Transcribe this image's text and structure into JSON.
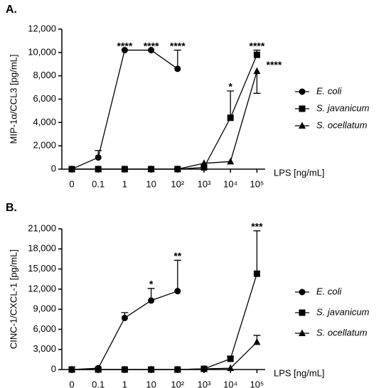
{
  "chart_data": [
    {
      "type": "line",
      "panel_label": "A.",
      "ylabel": "MIP-1α/CCL3 [pg/mL]",
      "xlabel": "LPS [ng/mL]",
      "categories": [
        "0",
        "0.1",
        "1",
        "10",
        "10²",
        "10³",
        "10⁴",
        "10⁵"
      ],
      "ylim": [
        0,
        12000
      ],
      "yticks": [
        0,
        {
          "value": 2000,
          "label": "2,000"
        },
        {
          "value": 4000,
          "label": "4,000"
        },
        {
          "value": 6000,
          "label": "6,000"
        },
        {
          "value": 8000,
          "label": "8,000"
        },
        {
          "value": 10000,
          "label": "10,000"
        },
        {
          "value": 12000,
          "label": "12,000"
        }
      ],
      "series": [
        {
          "name": "E. coli",
          "marker": "circle",
          "color": "#000000",
          "values": [
            0,
            1000,
            10200,
            10200,
            8600,
            null,
            null,
            null
          ],
          "errors": [
            null,
            600,
            null,
            null,
            1600,
            null,
            null,
            null
          ]
        },
        {
          "name": "S. javanicum",
          "marker": "square",
          "color": "#000000",
          "values": [
            0,
            0,
            0,
            0,
            0,
            150,
            4400,
            9800
          ],
          "errors": [
            null,
            null,
            null,
            null,
            null,
            null,
            2300,
            400
          ]
        },
        {
          "name": "S. ocellatum",
          "marker": "triangle",
          "color": "#000000",
          "values": [
            0,
            0,
            0,
            0,
            0,
            500,
            650,
            8400
          ],
          "errors": [
            null,
            null,
            null,
            null,
            null,
            null,
            null,
            1900
          ],
          "error_side": "down"
        }
      ],
      "annotations": [
        {
          "text": "****",
          "series": 0,
          "category": 2
        },
        {
          "text": "****",
          "series": 0,
          "category": 3
        },
        {
          "text": "****",
          "series": 0,
          "category": 4
        },
        {
          "text": "*",
          "series": 1,
          "category": 6
        },
        {
          "text": "****",
          "series": 1,
          "category": 7
        },
        {
          "text": "****",
          "series": 2,
          "category": 7,
          "position": "right"
        }
      ]
    },
    {
      "type": "line",
      "panel_label": "B.",
      "ylabel": "CINC-1/CXCL-1 [pg/mL]",
      "xlabel": "LPS [ng/mL]",
      "categories": [
        "0",
        "0.1",
        "1",
        "10",
        "10²",
        "10³",
        "10⁴",
        "10⁵"
      ],
      "ylim": [
        0,
        21000
      ],
      "yticks": [
        0,
        {
          "value": 3000,
          "label": "3,000"
        },
        {
          "value": 6000,
          "label": "6,000"
        },
        {
          "value": 9000,
          "label": "9,000"
        },
        {
          "value": 12000,
          "label": "12,000"
        },
        {
          "value": 15000,
          "label": "15,000"
        },
        {
          "value": 18000,
          "label": "18,000"
        },
        {
          "value": 21000,
          "label": "21,000"
        }
      ],
      "series": [
        {
          "name": "E. coli",
          "marker": "circle",
          "color": "#000000",
          "values": [
            0,
            200,
            7700,
            10300,
            11700,
            null,
            null,
            null
          ],
          "errors": [
            null,
            null,
            800,
            1800,
            4600,
            null,
            null,
            null
          ]
        },
        {
          "name": "S. javanicum",
          "marker": "square",
          "color": "#000000",
          "values": [
            0,
            0,
            0,
            0,
            0,
            100,
            1600,
            14300
          ],
          "errors": [
            null,
            null,
            null,
            null,
            null,
            null,
            400,
            6400
          ]
        },
        {
          "name": "S. ocellatum",
          "marker": "triangle",
          "color": "#000000",
          "values": [
            0,
            0,
            0,
            0,
            0,
            100,
            200,
            4100
          ],
          "errors": [
            null,
            null,
            null,
            null,
            null,
            null,
            null,
            1000
          ]
        }
      ],
      "annotations": [
        {
          "text": "*",
          "series": 0,
          "category": 3
        },
        {
          "text": "**",
          "series": 0,
          "category": 4
        },
        {
          "text": "***",
          "series": 1,
          "category": 7
        }
      ]
    }
  ]
}
